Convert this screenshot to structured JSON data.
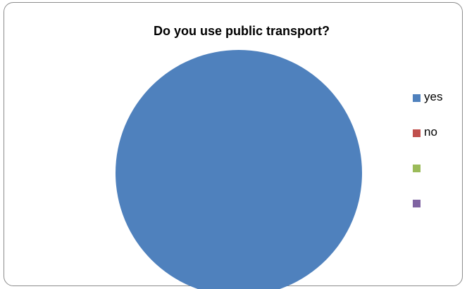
{
  "chart_data": {
    "type": "pie",
    "title": "Do you use public transport?",
    "categories": [
      "yes",
      "no",
      "",
      ""
    ],
    "values": [
      1,
      0,
      0,
      0
    ],
    "colors": [
      "#4f81bd",
      "#c0504d",
      "#9bbb59",
      "#8064a2"
    ],
    "legend_position": "right"
  }
}
